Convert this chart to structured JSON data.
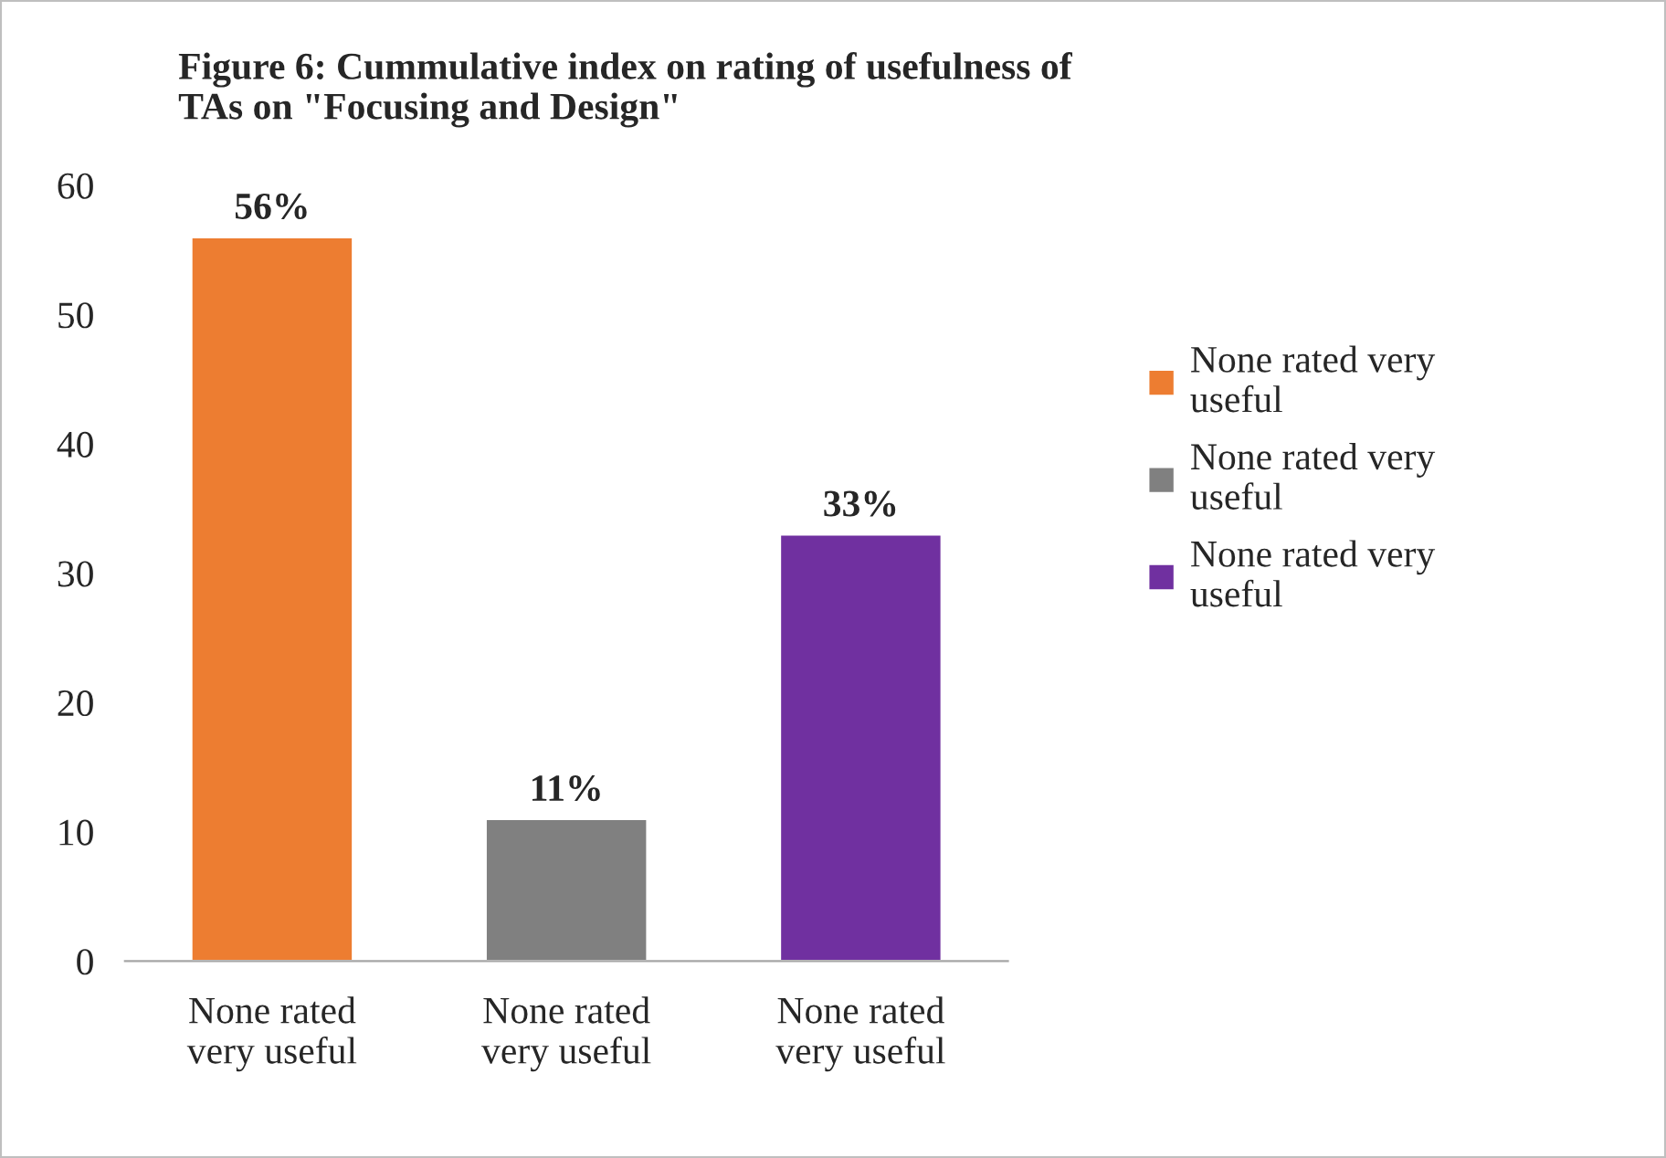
{
  "chart_data": {
    "type": "bar",
    "title": "Figure 6: Cummulative index on rating of usefulness of\nTAs on \"Focusing and Design\"",
    "categories": [
      "None rated\nvery useful",
      "None rated\nvery useful",
      "None rated\nvery useful"
    ],
    "series": [
      {
        "name": "None rated very\nuseful",
        "color": "#ed7d31",
        "values": [
          56,
          null,
          null
        ],
        "value_labels": [
          "56%",
          null,
          null
        ]
      },
      {
        "name": "None rated very\nuseful",
        "color": "#808080",
        "values": [
          null,
          11,
          null
        ],
        "value_labels": [
          null,
          "11%",
          null
        ]
      },
      {
        "name": "None rated very\nuseful",
        "color": "#7030a0",
        "values": [
          null,
          null,
          33
        ],
        "value_labels": [
          null,
          null,
          "33%"
        ]
      }
    ],
    "ylim": [
      0,
      60
    ],
    "yticks": [
      0,
      10,
      20,
      30,
      40,
      50,
      60
    ],
    "grid": false,
    "legend": "right"
  }
}
